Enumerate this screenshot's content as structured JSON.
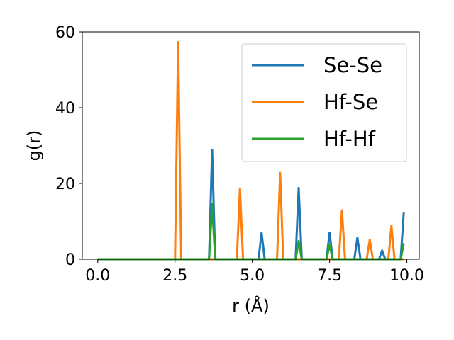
{
  "chart_data": {
    "type": "line",
    "title": "",
    "xlabel": "r (Å)",
    "ylabel": "g(r)",
    "xlim": [
      -0.5,
      10.4
    ],
    "ylim": [
      0,
      60
    ],
    "xticks": [
      0.0,
      2.5,
      5.0,
      7.5,
      10.0
    ],
    "xtick_labels": [
      "0.0",
      "2.5",
      "5.0",
      "7.5",
      "10.0"
    ],
    "yticks": [
      0,
      20,
      40,
      60
    ],
    "ytick_labels": [
      "0",
      "20",
      "40",
      "60"
    ],
    "grid": false,
    "legend_position": "top-right",
    "series": [
      {
        "name": "Se-Se",
        "color": "#1f77b4",
        "x": [
          0.0,
          3.6,
          3.7,
          3.8,
          5.2,
          5.3,
          5.4,
          6.4,
          6.5,
          6.6,
          7.4,
          7.5,
          7.6,
          8.3,
          8.4,
          8.5,
          9.1,
          9.2,
          9.3,
          9.8,
          9.9
        ],
        "y": [
          0,
          0,
          28.8,
          0,
          0,
          7.0,
          0,
          0,
          18.8,
          0,
          0,
          7.0,
          0,
          0,
          5.7,
          0,
          0,
          2.3,
          0,
          0,
          12.3
        ]
      },
      {
        "name": "Hf-Se",
        "color": "#ff7f0e",
        "x": [
          0.0,
          2.5,
          2.6,
          2.7,
          4.5,
          4.6,
          4.7,
          5.8,
          5.9,
          6.0,
          7.8,
          7.9,
          8.0,
          8.7,
          8.8,
          8.9,
          9.4,
          9.5,
          9.6,
          9.9
        ],
        "y": [
          0,
          0,
          57.3,
          0,
          0,
          18.7,
          0,
          0,
          22.8,
          0,
          0,
          12.9,
          0,
          0,
          5.2,
          0,
          0,
          8.8,
          0,
          0
        ]
      },
      {
        "name": "Hf-Hf",
        "color": "#2ca02c",
        "x": [
          0.0,
          3.6,
          3.7,
          3.8,
          6.4,
          6.5,
          6.6,
          7.4,
          7.5,
          7.6,
          9.8,
          9.9
        ],
        "y": [
          0,
          0,
          14.5,
          0,
          0,
          4.8,
          0,
          0,
          3.8,
          0,
          0,
          4.2
        ]
      }
    ]
  }
}
